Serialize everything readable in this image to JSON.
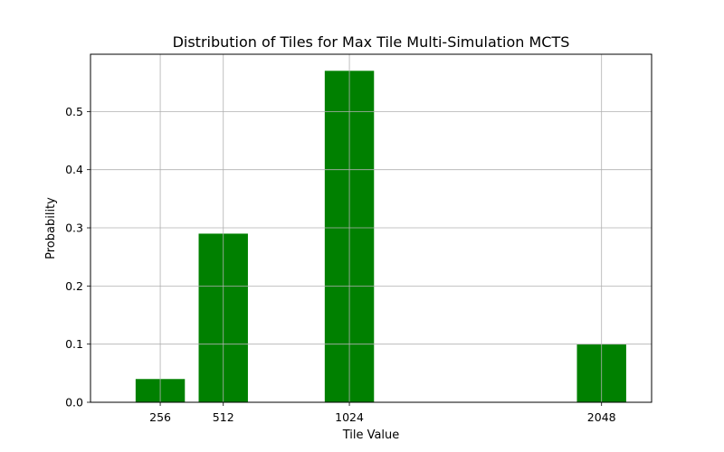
{
  "chart_data": {
    "type": "bar",
    "title": "Distribution of Tiles for Max Tile Multi-Simulation MCTS",
    "xlabel": "Tile Value",
    "ylabel": "Probability",
    "categories": [
      "256",
      "512",
      "1024",
      "2048"
    ],
    "x": [
      256,
      512,
      1024,
      2048
    ],
    "values": [
      0.04,
      0.29,
      0.57,
      0.1
    ],
    "bar_width": 200,
    "xlim": [
      -27.2,
      2251.2
    ],
    "ylim": [
      0,
      0.5985
    ],
    "yticks": [
      0.0,
      0.1,
      0.2,
      0.3,
      0.4,
      0.5
    ],
    "ytick_labels": [
      "0.0",
      "0.1",
      "0.2",
      "0.3",
      "0.4",
      "0.5"
    ],
    "grid": true,
    "bar_color": "#008000"
  }
}
